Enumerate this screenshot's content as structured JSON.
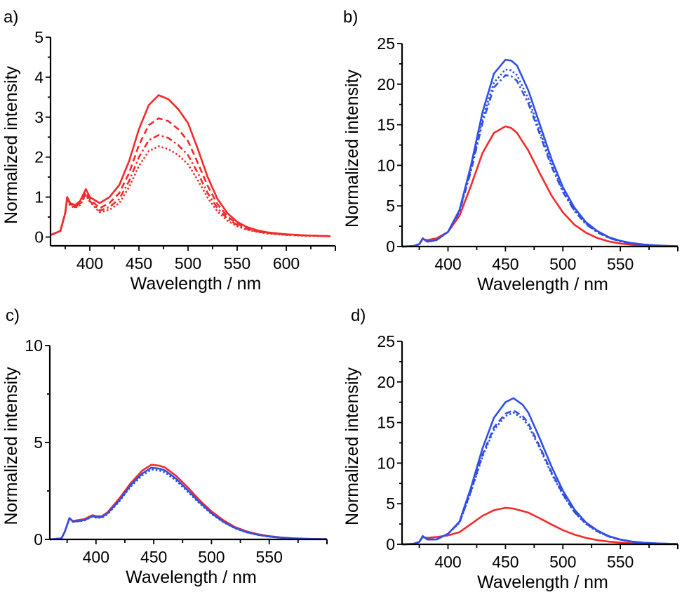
{
  "colors": {
    "red": "#f42a2a",
    "blue": "#2f4fe6",
    "axis": "#000000"
  },
  "chart_data": [
    {
      "panel_label": "a)",
      "type": "line",
      "xlabel": "Wavelength / nm",
      "ylabel": "Normalized intensity",
      "xlim": [
        360,
        650
      ],
      "ylim": [
        -0.22,
        5
      ],
      "xticks": [
        400,
        450,
        500,
        550,
        600
      ],
      "yticks": [
        0,
        1,
        2,
        3,
        4,
        5
      ],
      "grid": false,
      "x": [
        360,
        370,
        375,
        377,
        380,
        385,
        390,
        396,
        400,
        410,
        420,
        430,
        440,
        450,
        460,
        470,
        480,
        490,
        500,
        510,
        520,
        530,
        540,
        550,
        560,
        570,
        580,
        600,
        620,
        645
      ],
      "series": [
        {
          "color": "red",
          "style": "solid",
          "values": [
            0.05,
            0.15,
            0.6,
            1.0,
            0.85,
            0.8,
            0.9,
            1.2,
            1.0,
            0.85,
            1.0,
            1.3,
            1.9,
            2.7,
            3.3,
            3.55,
            3.45,
            3.2,
            2.85,
            2.2,
            1.5,
            0.95,
            0.6,
            0.38,
            0.25,
            0.17,
            0.12,
            0.07,
            0.04,
            0.02
          ]
        },
        {
          "color": "red",
          "style": "dashed",
          "values": [
            0.05,
            0.15,
            0.6,
            1.0,
            0.82,
            0.78,
            0.85,
            1.12,
            0.95,
            0.72,
            0.85,
            1.1,
            1.6,
            2.3,
            2.8,
            2.97,
            2.9,
            2.7,
            2.4,
            1.85,
            1.28,
            0.82,
            0.52,
            0.33,
            0.22,
            0.15,
            0.11,
            0.06,
            0.04,
            0.02
          ]
        },
        {
          "color": "red",
          "style": "dashdot",
          "values": [
            0.05,
            0.15,
            0.6,
            0.98,
            0.8,
            0.75,
            0.82,
            1.08,
            0.9,
            0.66,
            0.75,
            0.95,
            1.4,
            2.0,
            2.42,
            2.55,
            2.48,
            2.3,
            2.05,
            1.6,
            1.1,
            0.72,
            0.46,
            0.3,
            0.2,
            0.14,
            0.1,
            0.06,
            0.04,
            0.02
          ]
        },
        {
          "color": "red",
          "style": "dotted",
          "values": [
            0.05,
            0.15,
            0.6,
            0.97,
            0.78,
            0.73,
            0.8,
            1.05,
            0.88,
            0.62,
            0.68,
            0.85,
            1.25,
            1.78,
            2.15,
            2.27,
            2.2,
            2.05,
            1.82,
            1.42,
            0.98,
            0.64,
            0.41,
            0.27,
            0.18,
            0.13,
            0.09,
            0.05,
            0.03,
            0.02
          ]
        }
      ]
    },
    {
      "panel_label": "b)",
      "type": "line",
      "xlabel": "Wavelength / nm",
      "ylabel": "Normalized intensity",
      "xlim": [
        360,
        600
      ],
      "ylim": [
        0,
        25
      ],
      "xticks": [
        400,
        450,
        500,
        550
      ],
      "yticks": [
        0,
        5,
        10,
        15,
        20,
        25
      ],
      "grid": false,
      "x": [
        360,
        370,
        375,
        378,
        382,
        390,
        400,
        410,
        420,
        430,
        440,
        450,
        455,
        460,
        470,
        480,
        490,
        500,
        510,
        520,
        530,
        540,
        550,
        560,
        570,
        580,
        590,
        600
      ],
      "series": [
        {
          "color": "red",
          "style": "solid",
          "values": [
            0,
            0.05,
            0.3,
            0.9,
            0.8,
            1.0,
            1.8,
            3.8,
            7.5,
            11.5,
            14,
            14.8,
            14.6,
            14,
            11.8,
            9.0,
            6.3,
            4.2,
            2.7,
            1.7,
            1.05,
            0.62,
            0.37,
            0.22,
            0.13,
            0.08,
            0.05,
            0.02
          ]
        },
        {
          "color": "blue",
          "style": "solid",
          "values": [
            0,
            0.05,
            0.3,
            1.0,
            0.6,
            0.8,
            1.8,
            4.5,
            10,
            16.5,
            21.3,
            23,
            22.9,
            22.3,
            19.2,
            15,
            10.8,
            7.3,
            4.8,
            3.0,
            1.9,
            1.15,
            0.7,
            0.42,
            0.25,
            0.15,
            0.08,
            0.04
          ]
        },
        {
          "color": "blue",
          "style": "dotted",
          "values": [
            0,
            0.05,
            0.3,
            1.0,
            0.6,
            0.8,
            1.8,
            4.4,
            9.6,
            15.7,
            20.2,
            21.8,
            21.7,
            21.1,
            18.2,
            14.2,
            10.2,
            6.9,
            4.5,
            2.85,
            1.8,
            1.1,
            0.66,
            0.4,
            0.24,
            0.14,
            0.08,
            0.04
          ]
        },
        {
          "color": "blue",
          "style": "dashdot",
          "values": [
            0,
            0.05,
            0.3,
            1.0,
            0.6,
            0.8,
            1.8,
            4.3,
            9.3,
            15.2,
            19.6,
            21.1,
            21.0,
            20.4,
            17.6,
            13.8,
            9.9,
            6.7,
            4.4,
            2.75,
            1.75,
            1.05,
            0.64,
            0.38,
            0.23,
            0.14,
            0.08,
            0.04
          ]
        }
      ]
    },
    {
      "panel_label": "c)",
      "type": "line",
      "xlabel": "Wavelength / nm",
      "ylabel": "Normalized intensity",
      "xlim": [
        360,
        600
      ],
      "ylim": [
        0,
        10
      ],
      "xticks": [
        400,
        450,
        500,
        550
      ],
      "yticks": [
        0,
        5,
        10
      ],
      "grid": false,
      "x": [
        360,
        370,
        373,
        377,
        380,
        385,
        390,
        397,
        400,
        405,
        410,
        420,
        430,
        440,
        448,
        455,
        460,
        470,
        480,
        490,
        500,
        510,
        520,
        530,
        540,
        550,
        560,
        570,
        580,
        590,
        600
      ],
      "series": [
        {
          "color": "red",
          "style": "solid",
          "values": [
            0,
            0.05,
            0.4,
            1.1,
            0.95,
            1.0,
            1.05,
            1.25,
            1.2,
            1.2,
            1.4,
            2.1,
            2.9,
            3.55,
            3.85,
            3.8,
            3.7,
            3.25,
            2.65,
            2.0,
            1.45,
            1.0,
            0.65,
            0.42,
            0.27,
            0.17,
            0.1,
            0.06,
            0.04,
            0.02,
            0.01
          ]
        },
        {
          "color": "blue",
          "style": "solid",
          "values": [
            0,
            0.05,
            0.4,
            1.1,
            0.92,
            0.95,
            1.0,
            1.2,
            1.15,
            1.15,
            1.35,
            2.0,
            2.8,
            3.4,
            3.7,
            3.65,
            3.55,
            3.1,
            2.5,
            1.9,
            1.35,
            0.92,
            0.6,
            0.38,
            0.24,
            0.15,
            0.09,
            0.05,
            0.03,
            0.02,
            0.01
          ]
        },
        {
          "color": "blue",
          "style": "dotted",
          "values": [
            0,
            0.05,
            0.4,
            1.1,
            0.9,
            0.93,
            0.98,
            1.18,
            1.12,
            1.12,
            1.3,
            1.95,
            2.72,
            3.3,
            3.6,
            3.55,
            3.45,
            3.0,
            2.42,
            1.84,
            1.31,
            0.9,
            0.58,
            0.37,
            0.23,
            0.14,
            0.09,
            0.05,
            0.03,
            0.02,
            0.01
          ]
        }
      ]
    },
    {
      "panel_label": "d)",
      "type": "line",
      "xlabel": "Wavelength / nm",
      "ylabel": "Normalized intensity",
      "xlim": [
        360,
        600
      ],
      "ylim": [
        0,
        25
      ],
      "xticks": [
        400,
        450,
        500,
        550
      ],
      "yticks": [
        0,
        5,
        10,
        15,
        20,
        25
      ],
      "grid": false,
      "x": [
        360,
        370,
        375,
        378,
        382,
        390,
        400,
        410,
        420,
        430,
        440,
        450,
        457,
        465,
        470,
        480,
        490,
        500,
        510,
        520,
        530,
        540,
        550,
        560,
        570,
        580,
        590,
        600
      ],
      "series": [
        {
          "color": "red",
          "style": "solid",
          "values": [
            0,
            0.05,
            0.3,
            0.9,
            0.8,
            0.9,
            1.1,
            1.5,
            2.5,
            3.5,
            4.2,
            4.5,
            4.4,
            4.1,
            3.9,
            3.2,
            2.45,
            1.75,
            1.2,
            0.8,
            0.52,
            0.33,
            0.21,
            0.13,
            0.08,
            0.05,
            0.03,
            0.02
          ]
        },
        {
          "color": "blue",
          "style": "solid",
          "values": [
            0,
            0.05,
            0.3,
            1.0,
            0.6,
            0.6,
            1.3,
            2.8,
            7.0,
            11.8,
            15.6,
            17.5,
            18,
            17.2,
            16.2,
            13,
            9.6,
            6.6,
            4.3,
            2.7,
            1.7,
            1.0,
            0.6,
            0.35,
            0.2,
            0.12,
            0.07,
            0.04
          ]
        },
        {
          "color": "blue",
          "style": "dashed",
          "values": [
            0,
            0.05,
            0.3,
            1.0,
            0.6,
            0.6,
            1.3,
            2.7,
            6.6,
            11,
            14.4,
            16.1,
            16.5,
            15.8,
            14.9,
            12,
            8.9,
            6.2,
            4.0,
            2.55,
            1.6,
            0.95,
            0.57,
            0.33,
            0.19,
            0.11,
            0.07,
            0.04
          ]
        },
        {
          "color": "blue",
          "style": "dotted",
          "values": [
            0,
            0.05,
            0.3,
            1.0,
            0.6,
            0.6,
            1.3,
            2.65,
            6.45,
            10.8,
            14.1,
            15.8,
            16.2,
            15.5,
            14.6,
            11.8,
            8.7,
            6.1,
            3.95,
            2.5,
            1.57,
            0.93,
            0.56,
            0.32,
            0.19,
            0.11,
            0.07,
            0.04
          ]
        }
      ]
    }
  ]
}
